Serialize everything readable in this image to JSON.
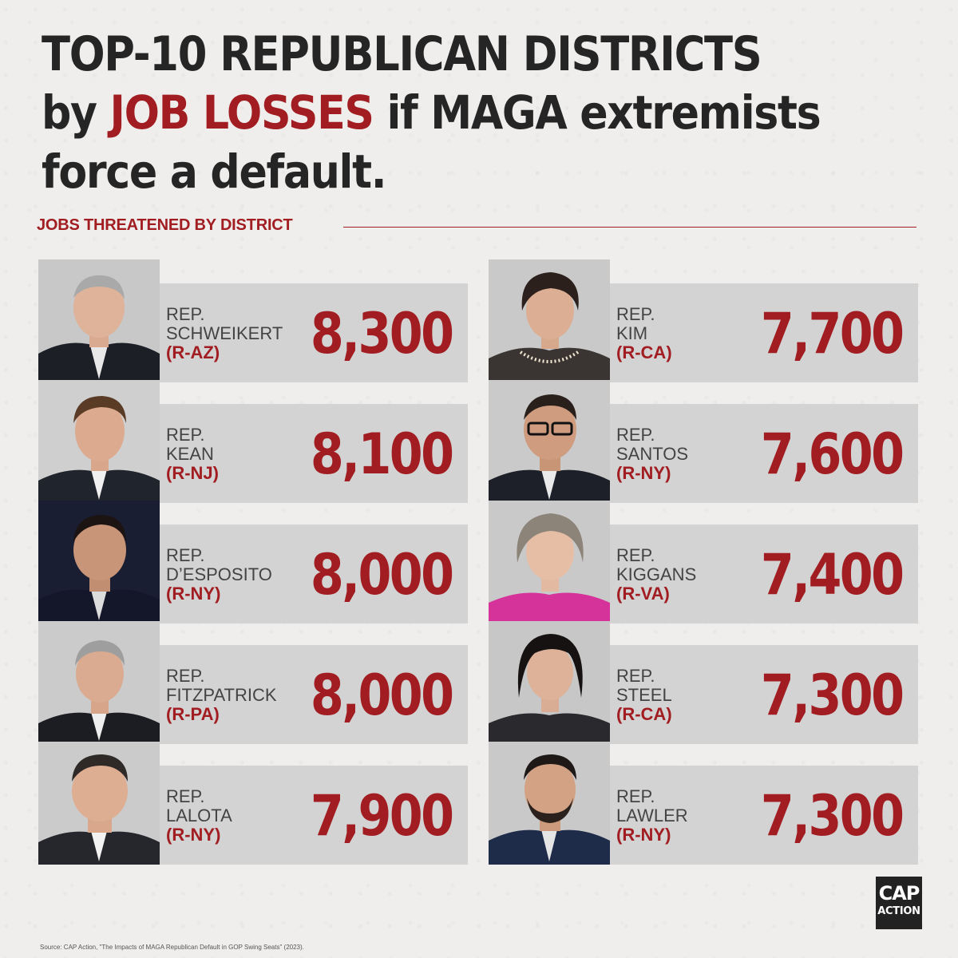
{
  "headline": {
    "line1": "TOP-10 REPUBLICAN DISTRICTS",
    "line2_prefix": "by ",
    "line2_accent": "JOB LOSSES",
    "line2_suffix": " if MAGA extremists",
    "line3": "force a default."
  },
  "section_label": "JOBS THREATENED BY DISTRICT",
  "colors": {
    "accent": "#a11d21",
    "card_bg": "#d3d3d3",
    "background": "#efeeec",
    "headline": "#252525"
  },
  "representatives": [
    {
      "prefix": "REP.",
      "name": "SCHWEIKERT",
      "party": "(R-AZ)",
      "jobs": "8,300",
      "portrait": "portrait-schweikert-icon"
    },
    {
      "prefix": "REP.",
      "name": "KIM",
      "party": "(R-CA)",
      "jobs": "7,700",
      "portrait": "portrait-kim-icon"
    },
    {
      "prefix": "REP.",
      "name": "KEAN",
      "party": "(R-NJ)",
      "jobs": "8,100",
      "portrait": "portrait-kean-icon"
    },
    {
      "prefix": "REP.",
      "name": "SANTOS",
      "party": "(R-NY)",
      "jobs": "7,600",
      "portrait": "portrait-santos-icon"
    },
    {
      "prefix": "REP.",
      "name": "D’ESPOSITO",
      "party": "(R-NY)",
      "jobs": "8,000",
      "portrait": "portrait-desposito-icon"
    },
    {
      "prefix": "REP.",
      "name": "KIGGANS",
      "party": "(R-VA)",
      "jobs": "7,400",
      "portrait": "portrait-kiggans-icon"
    },
    {
      "prefix": "REP.",
      "name": "FITZPATRICK",
      "party": "(R-PA)",
      "jobs": "8,000",
      "portrait": "portrait-fitzpatrick-icon"
    },
    {
      "prefix": "REP.",
      "name": "STEEL",
      "party": "(R-CA)",
      "jobs": "7,300",
      "portrait": "portrait-steel-icon"
    },
    {
      "prefix": "REP.",
      "name": "LALOTA",
      "party": "(R-NY)",
      "jobs": "7,900",
      "portrait": "portrait-lalota-icon"
    },
    {
      "prefix": "REP.",
      "name": "LAWLER",
      "party": "(R-NY)",
      "jobs": "7,300",
      "portrait": "portrait-lawler-icon"
    }
  ],
  "logo": {
    "line1": "CAP",
    "line2": "ACTION"
  },
  "source": "Source: CAP Action, \"The Impacts of MAGA Republican Default in GOP Swing Seats\" (2023)."
}
